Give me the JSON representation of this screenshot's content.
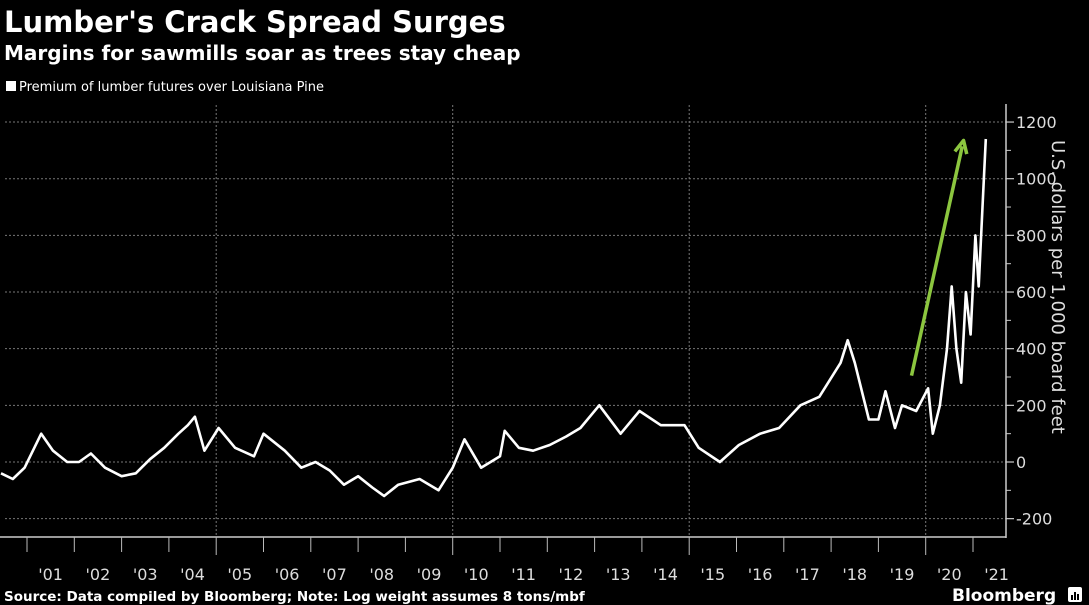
{
  "chart_data": {
    "type": "line",
    "title": "Lumber's Crack Spread Surges",
    "subtitle": "Margins for sawmills soar as trees stay cheap",
    "legend": [
      {
        "name": "Premium of lumber futures over Louisiana Pine",
        "color": "#ffffff"
      }
    ],
    "legend_placement": "top-left",
    "ylabel": "U.S. dollars per 1,000 board feet",
    "ylim": [
      -200,
      1200
    ],
    "yticks": [
      -200,
      0,
      200,
      400,
      600,
      800,
      1000,
      1200
    ],
    "y_axis_side": "right",
    "xlim": [
      2000.5,
      2021.4
    ],
    "xtick_labels": [
      "'01",
      "'02",
      "'03",
      "'04",
      "'05",
      "'06",
      "'07",
      "'08",
      "'09",
      "'10",
      "'11",
      "'12",
      "'13",
      "'14",
      "'15",
      "'16",
      "'17",
      "'18",
      "'19",
      "'20",
      "'21"
    ],
    "grid": true,
    "series": [
      {
        "name": "Premium of lumber futures over Louisiana Pine",
        "color": "#ffffff",
        "x": [
          2000.45,
          2000.7,
          2000.95,
          2001.3,
          2001.55,
          2001.85,
          2002.1,
          2002.35,
          2002.65,
          2003.0,
          2003.3,
          2003.6,
          2003.9,
          2004.2,
          2004.4,
          2004.55,
          2004.75,
          2005.05,
          2005.4,
          2005.8,
          2006.0,
          2006.45,
          2006.8,
          2007.1,
          2007.4,
          2007.7,
          2008.0,
          2008.3,
          2008.55,
          2008.85,
          2009.3,
          2009.7,
          2010.0,
          2010.25,
          2010.6,
          2011.0,
          2011.1,
          2011.4,
          2011.7,
          2012.05,
          2012.4,
          2012.7,
          2013.1,
          2013.55,
          2013.95,
          2014.4,
          2014.9,
          2015.2,
          2015.65,
          2016.05,
          2016.5,
          2016.9,
          2017.35,
          2017.75,
          2018.2,
          2018.35,
          2018.5,
          2018.8,
          2019.0,
          2019.15,
          2019.35,
          2019.5,
          2019.8,
          2020.05,
          2020.15,
          2020.3,
          2020.45,
          2020.55,
          2020.65,
          2020.75,
          2020.85,
          2020.95,
          2021.05,
          2021.12,
          2021.2,
          2021.27
        ],
        "values": [
          -40,
          -60,
          -20,
          100,
          40,
          0,
          0,
          30,
          -20,
          -50,
          -40,
          10,
          50,
          100,
          130,
          160,
          40,
          120,
          50,
          20,
          100,
          40,
          -20,
          0,
          -30,
          -80,
          -50,
          -90,
          -120,
          -80,
          -60,
          -100,
          -20,
          80,
          -20,
          20,
          110,
          50,
          40,
          60,
          90,
          120,
          200,
          100,
          180,
          130,
          130,
          50,
          0,
          60,
          100,
          120,
          200,
          230,
          350,
          430,
          350,
          150,
          150,
          250,
          120,
          200,
          180,
          260,
          100,
          200,
          400,
          620,
          400,
          280,
          600,
          450,
          800,
          620,
          900,
          1140
        ]
      }
    ],
    "annotations": [
      {
        "type": "arrow",
        "color": "#8cc63f",
        "from": [
          2019.7,
          305
        ],
        "to": [
          2020.8,
          1135
        ]
      }
    ],
    "source": "Source: Data compiled by Bloomberg; Note: Log weight assumes 8 tons/mbf",
    "brand": "Bloomberg"
  }
}
